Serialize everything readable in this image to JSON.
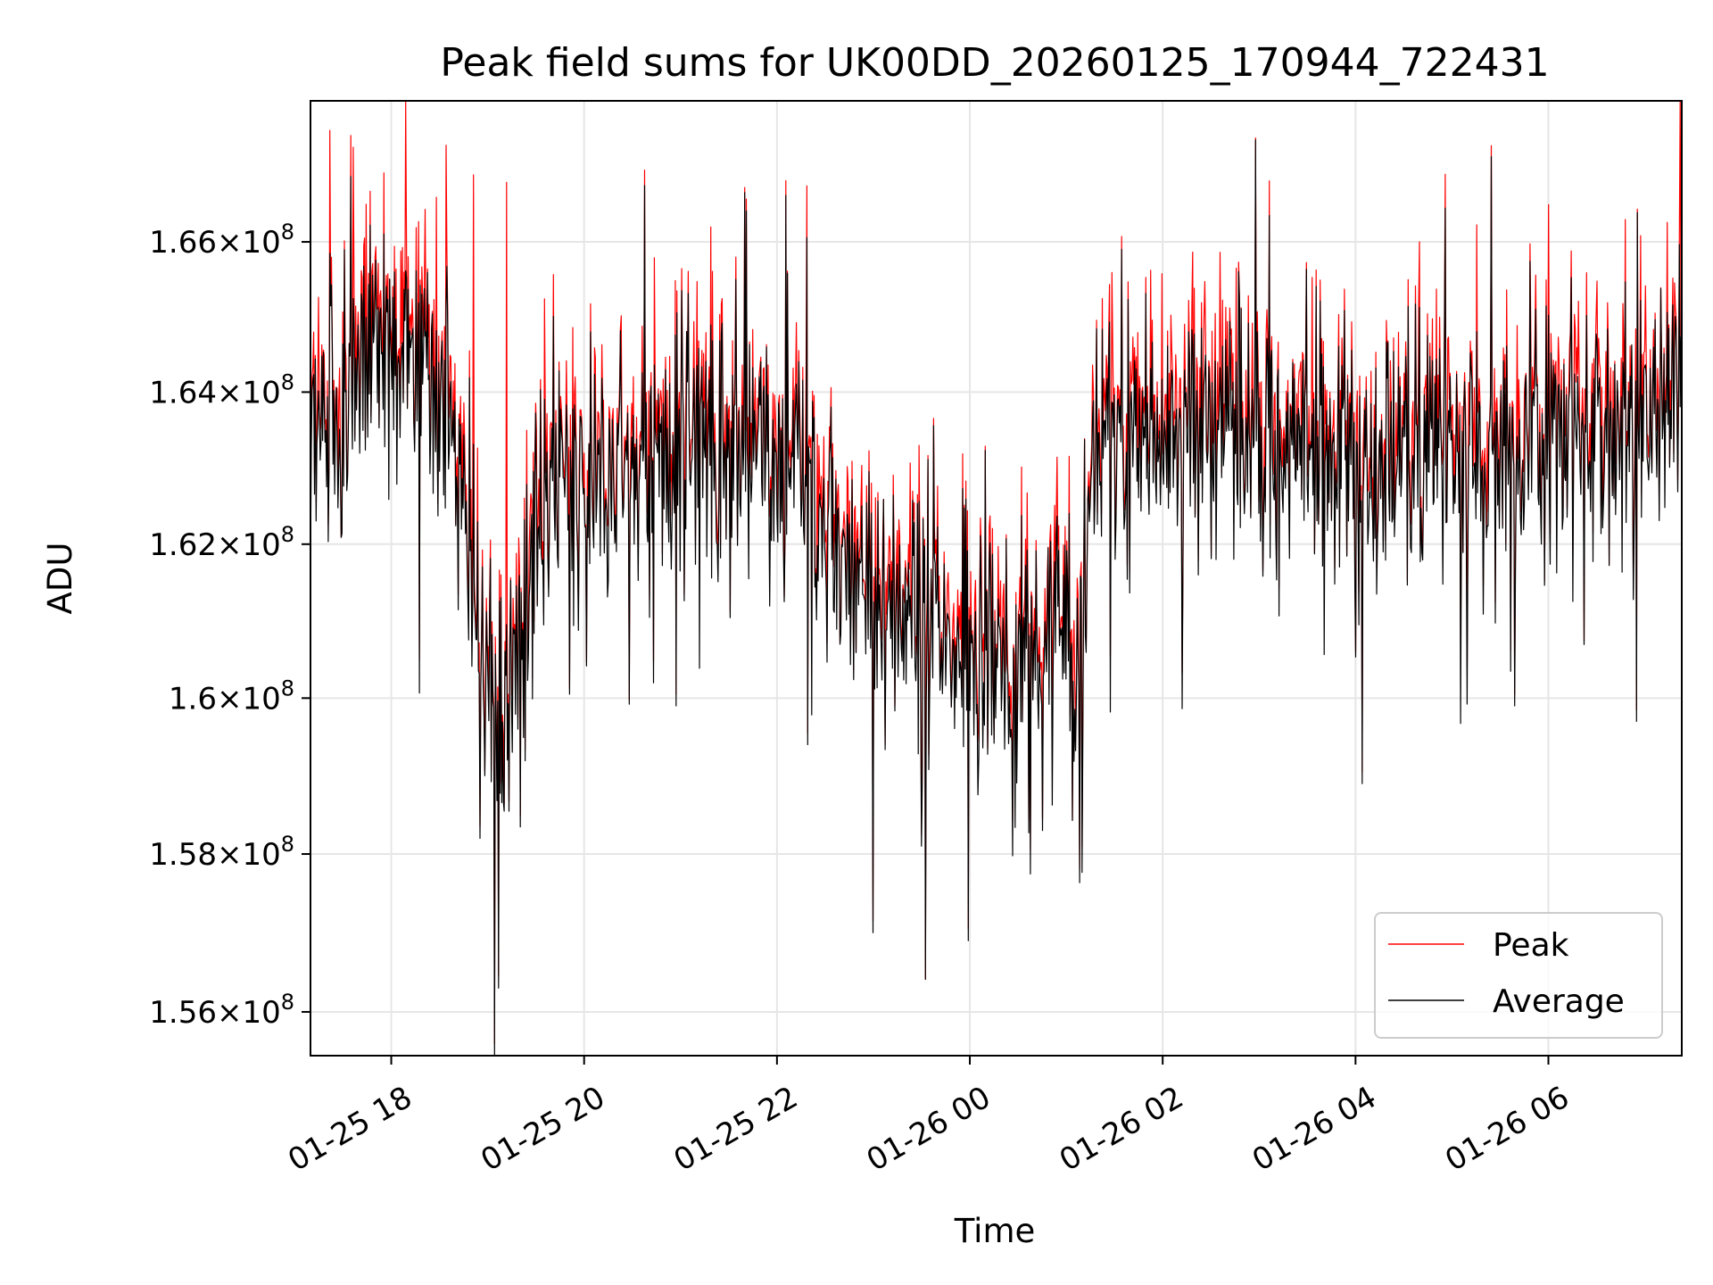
{
  "chart_data": {
    "type": "line",
    "title": "Peak field sums for UK00DD_20260125_170944_722431",
    "xlabel": "Time",
    "ylabel": "ADU",
    "x_axis_type": "datetime",
    "xlim": [
      "2026-01-25 17:09:44",
      "2026-01-26 07:23:00"
    ],
    "ylim": [
      155450000,
      167900000
    ],
    "y_scale": "log",
    "grid": true,
    "legend_position": "lower right",
    "x_ticks": [
      {
        "value": "2026-01-25 18:00",
        "label": "01-25 18"
      },
      {
        "value": "2026-01-25 20:00",
        "label": "01-25 20"
      },
      {
        "value": "2026-01-25 22:00",
        "label": "01-25 22"
      },
      {
        "value": "2026-01-26 00:00",
        "label": "01-26 00"
      },
      {
        "value": "2026-01-26 02:00",
        "label": "01-26 02"
      },
      {
        "value": "2026-01-26 04:00",
        "label": "01-26 04"
      },
      {
        "value": "2026-01-26 06:00",
        "label": "01-26 06"
      }
    ],
    "y_ticks": [
      {
        "value": 156000000,
        "mantissa": "1.56",
        "exponent": "8"
      },
      {
        "value": 158000000,
        "mantissa": "1.58",
        "exponent": "8"
      },
      {
        "value": 160000000,
        "mantissa": "1.6",
        "exponent": "8"
      },
      {
        "value": 162000000,
        "mantissa": "1.62",
        "exponent": "8"
      },
      {
        "value": 164000000,
        "mantissa": "1.64",
        "exponent": "8"
      },
      {
        "value": 166000000,
        "mantissa": "1.66",
        "exponent": "8"
      }
    ],
    "series": [
      {
        "name": "Peak",
        "color": "#ff0000"
      },
      {
        "name": "Average",
        "color": "#000000"
      }
    ],
    "trend": {
      "x": [
        "2026-01-25 17:10",
        "2026-01-25 17:40",
        "2026-01-25 18:10",
        "2026-01-25 18:40",
        "2026-01-25 18:55",
        "2026-01-25 19:05",
        "2026-01-25 19:10",
        "2026-01-25 19:25",
        "2026-01-25 19:45",
        "2026-01-25 20:30",
        "2026-01-25 21:30",
        "2026-01-25 22:10",
        "2026-01-25 22:30",
        "2026-01-25 23:00",
        "2026-01-25 23:40",
        "2026-01-26 00:20",
        "2026-01-26 00:50",
        "2026-01-26 01:10",
        "2026-01-26 01:15",
        "2026-01-26 01:40",
        "2026-01-26 02:30",
        "2026-01-26 03:30",
        "2026-01-26 04:30",
        "2026-01-26 05:30",
        "2026-01-26 06:30",
        "2026-01-26 07:22"
      ],
      "y": [
        163200000,
        164300000,
        164500000,
        163500000,
        161000000,
        160000000,
        159600000,
        161500000,
        162800000,
        163200000,
        163400000,
        163000000,
        162000000,
        161500000,
        160900000,
        160400000,
        160800000,
        160500000,
        162900000,
        163200000,
        163700000,
        163300000,
        163100000,
        163300000,
        163500000,
        164000000
      ]
    },
    "dips": [
      {
        "x": "2026-01-25 19:04",
        "y": 155450000
      },
      {
        "x": "2026-01-25 19:07",
        "y": 156300000
      },
      {
        "x": "2026-01-25 18:55",
        "y": 158200000
      },
      {
        "x": "2026-01-25 19:19",
        "y": 159600000
      },
      {
        "x": "2026-01-25 23:00",
        "y": 157000000
      },
      {
        "x": "2026-01-25 23:59",
        "y": 156900000
      },
      {
        "x": "2026-01-25 23:30",
        "y": 158100000
      },
      {
        "x": "2026-01-26 00:45",
        "y": 158300000
      },
      {
        "x": "2026-01-26 04:04",
        "y": 158900000
      },
      {
        "x": "2026-01-26 05:39",
        "y": 159900000
      },
      {
        "x": "2026-01-26 06:55",
        "y": 159700000
      },
      {
        "x": "2026-01-25 20:57",
        "y": 159900000
      },
      {
        "x": "2026-01-25 22:19",
        "y": 159400000
      }
    ],
    "spikes": [
      {
        "x": "2026-01-25 18:09",
        "y": 167900000
      },
      {
        "x": "2026-01-25 17:22",
        "y": 167500000
      },
      {
        "x": "2026-01-25 18:34",
        "y": 167300000
      },
      {
        "x": "2026-01-25 19:12",
        "y": 166800000
      },
      {
        "x": "2026-01-25 18:51",
        "y": 166900000
      },
      {
        "x": "2026-01-25 21:19",
        "y": 166200000
      },
      {
        "x": "2026-01-26 06:00",
        "y": 166500000
      },
      {
        "x": "2026-01-26 06:48",
        "y": 166300000
      },
      {
        "x": "2026-01-26 07:22",
        "y": 167900000
      }
    ]
  }
}
